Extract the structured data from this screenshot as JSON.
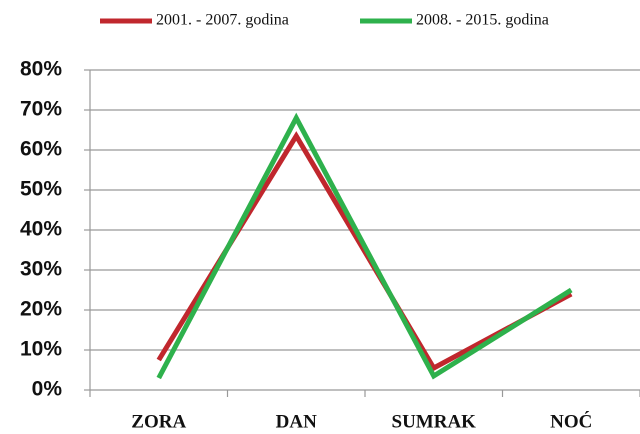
{
  "chart_data": {
    "type": "line",
    "categories": [
      "ZORA",
      "DAN",
      "SUMRAK",
      "NOĆ"
    ],
    "series": [
      {
        "name": "2001. - 2007. godina",
        "color": "#c0272d",
        "values": [
          7.5,
          63.5,
          5.5,
          24
        ]
      },
      {
        "name": "2008. - 2015. godina",
        "color": "#2eb14c",
        "values": [
          3,
          68,
          3.5,
          25
        ]
      }
    ],
    "ylim": [
      0,
      80
    ],
    "yticks": [
      {
        "value": 0,
        "label": "0%"
      },
      {
        "value": 10,
        "label": "10%"
      },
      {
        "value": 20,
        "label": "20%"
      },
      {
        "value": 30,
        "label": "30%"
      },
      {
        "value": 40,
        "label": "40%"
      },
      {
        "value": 50,
        "label": "50%"
      },
      {
        "value": 60,
        "label": "60%"
      },
      {
        "value": 70,
        "label": "70%"
      },
      {
        "value": 80,
        "label": "80%"
      }
    ],
    "grid": true,
    "legend": "top"
  }
}
